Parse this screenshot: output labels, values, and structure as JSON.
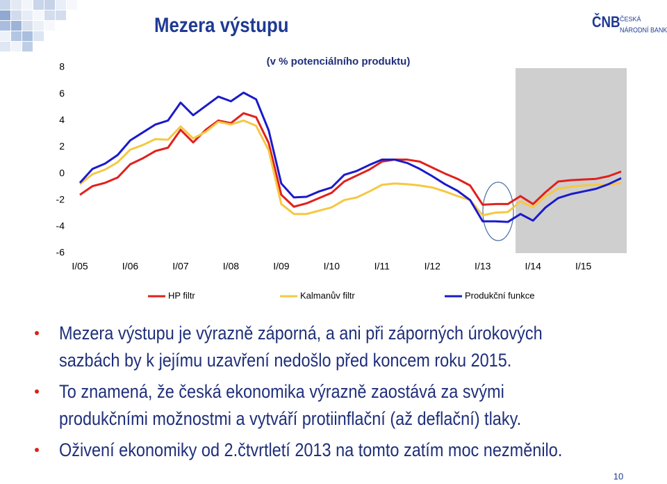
{
  "chart_data": {
    "type": "line",
    "title": "Mezera výstupu",
    "subtitle": "(v % potenciálního produktu)",
    "categories": [
      "I/05",
      null,
      null,
      null,
      "I/06",
      null,
      null,
      null,
      "I/07",
      null,
      null,
      null,
      "I/08",
      null,
      null,
      null,
      "I/09",
      null,
      null,
      null,
      "I/10",
      null,
      null,
      null,
      "I/11",
      null,
      null,
      null,
      "I/12",
      null,
      null,
      null,
      "I/13",
      null,
      null,
      null,
      "I/14",
      null,
      null,
      null,
      "I/15",
      null,
      null,
      null
    ],
    "series": [
      {
        "name": "HP filtr",
        "color": "#e0201b",
        "values": [
          -1.6,
          -0.95,
          -0.7,
          -0.3,
          0.7,
          1.15,
          1.7,
          1.95,
          3.3,
          2.35,
          3.3,
          4.0,
          3.8,
          4.55,
          4.25,
          2.3,
          -1.6,
          -2.5,
          -2.25,
          -1.85,
          -1.45,
          -0.6,
          -0.15,
          0.3,
          0.9,
          1.05,
          1.05,
          0.9,
          0.45,
          0,
          -0.4,
          -0.9,
          -2.35,
          -2.3,
          -2.3,
          -1.7,
          -2.3,
          -1.4,
          -0.6,
          -0.5,
          -0.45,
          -0.4,
          -0.2,
          0.15
        ]
      },
      {
        "name": "Kalmanův filtr",
        "color": "#f5c842",
        "values": [
          -0.8,
          -0.05,
          0.3,
          0.85,
          1.8,
          2.15,
          2.6,
          2.55,
          3.55,
          2.65,
          3.15,
          3.9,
          3.7,
          4.0,
          3.6,
          1.75,
          -2.3,
          -3.05,
          -3.05,
          -2.8,
          -2.55,
          -2.0,
          -1.8,
          -1.35,
          -0.85,
          -0.75,
          -0.8,
          -0.9,
          -1.05,
          -1.35,
          -1.7,
          -2.0,
          -3.15,
          -2.95,
          -2.9,
          -2.1,
          -2.55,
          -1.7,
          -1.15,
          -1.0,
          -0.9,
          -0.85,
          -0.85,
          -0.7
        ]
      },
      {
        "name": "Produkční funkce",
        "color": "#1a1acb",
        "values": [
          -0.7,
          0.35,
          0.75,
          1.4,
          2.5,
          3.1,
          3.7,
          4.0,
          5.35,
          4.4,
          5.1,
          5.8,
          5.45,
          6.1,
          5.6,
          3.25,
          -0.75,
          -1.8,
          -1.75,
          -1.35,
          -1.05,
          -0.1,
          0.2,
          0.65,
          1.05,
          1.05,
          0.8,
          0.35,
          -0.2,
          -0.8,
          -1.3,
          -2.0,
          -3.6,
          -3.6,
          -3.65,
          -3.05,
          -3.55,
          -2.55,
          -1.85,
          -1.55,
          -1.35,
          -1.15,
          -0.8,
          -0.35
        ]
      }
    ],
    "ylim": [
      -6,
      8
    ],
    "yticks": [
      -6,
      -4,
      -2,
      0,
      2,
      4,
      6,
      8
    ],
    "grid": false,
    "legend": "bottom"
  },
  "logo": {
    "mark": "ČNB",
    "line1": "ČESKÁ",
    "line2": "NÁRODNÍ BANKA"
  },
  "bullets": [
    [
      "Mezera výstupu je výrazně záporná, a ani při záporných úrokových",
      "sazbách by k jejímu uzavření nedošlo před koncem roku 2015."
    ],
    [
      "To znamená, že česká ekonomika výrazně zaostává za svými",
      "produkčními možnostmi a vytváří protiinflační (až deflační) tlaky."
    ],
    [
      "Oživení ekonomiky od 2.čtvrtletí 2013 na tomto zatím moc nezměnilo."
    ]
  ],
  "page_number": "10"
}
